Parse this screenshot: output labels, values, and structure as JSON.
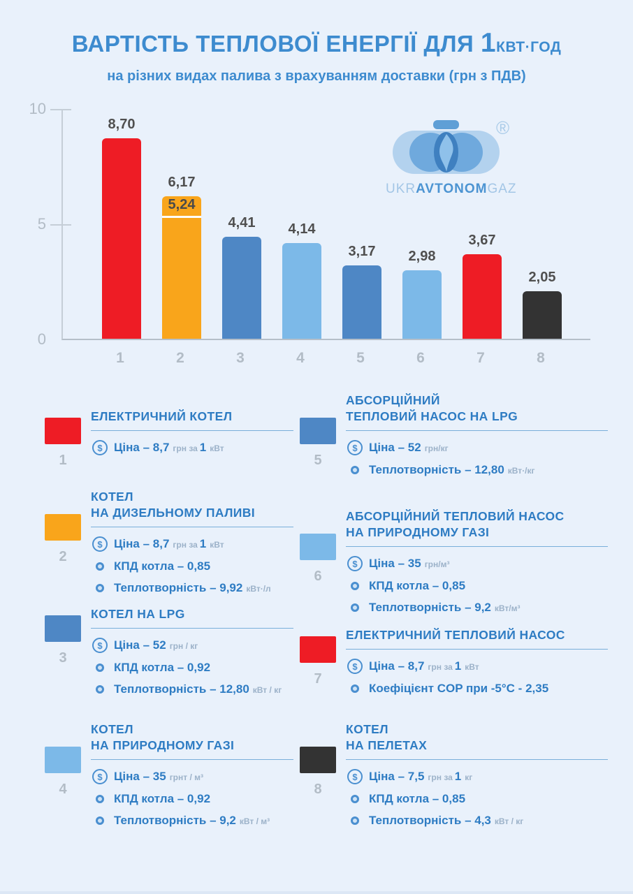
{
  "header": {
    "title_prefix": "ВАРТІСТЬ ТЕПЛОВОЇ ЕНЕРГІЇ ДЛЯ ",
    "title_num": "1",
    "title_unit": "КВТ·ГОД",
    "subtitle": "на різних видах палива з врахуванням доставки (грн з ПДВ)"
  },
  "logo": {
    "wordmark_pre": "UKR",
    "wordmark_bold": "AVTONOM",
    "wordmark_post": "GAZ",
    "registered": "®"
  },
  "chart_data": {
    "type": "bar",
    "title": "ВАРТІСТЬ ТЕПЛОВОЇ ЕНЕРГІЇ ДЛЯ 1 КВТ·ГОД на різних видах палива з врахуванням доставки (грн з ПДВ)",
    "categories": [
      "1",
      "2",
      "3",
      "4",
      "5",
      "6",
      "7",
      "8"
    ],
    "values": [
      8.7,
      6.17,
      4.41,
      4.14,
      3.17,
      2.98,
      3.67,
      2.05
    ],
    "value_labels": [
      "8,70",
      "6,17",
      "4,41",
      "4,14",
      "3,17",
      "2,98",
      "3,67",
      "2,05"
    ],
    "bar_colors": [
      "#ee1c25",
      "#f9a51b",
      "#4e87c5",
      "#7cb9e8",
      "#4e87c5",
      "#7cb9e8",
      "#ee1c25",
      "#333333"
    ],
    "inner_marker": {
      "bar_index": 1,
      "value": 5.24,
      "label": "5,24"
    },
    "ylim": [
      0,
      10
    ],
    "yticks": [
      0,
      5,
      10
    ],
    "xlabel": "",
    "ylabel": "",
    "grid": false,
    "legend_position": "bottom"
  },
  "colors": {
    "background": "#e9f1fb",
    "title_blue": "#3d8bcf",
    "accent_blue": "#2e7cc3",
    "unit_gray": "#9cb2c9",
    "axis_gray": "#b2bcc6",
    "red": "#ee1c25",
    "orange": "#f9a51b",
    "steel_blue": "#4e87c5",
    "light_blue": "#7cb9e8",
    "dark": "#333333",
    "value_label_gray": "#4f4f4f"
  },
  "legend": {
    "items": [
      {
        "num": "1",
        "color": "#ee1c25",
        "title_lines": [
          "ЕЛЕКТРИЧНИЙ КОТЕЛ"
        ],
        "details": [
          {
            "icon": "coin",
            "segs": [
              {
                "t": "Ціна – 8,7",
                "k": "b"
              },
              {
                "t": "грн за",
                "k": "u"
              },
              {
                "t": "1",
                "k": "b"
              },
              {
                "t": "кВт",
                "k": "u"
              }
            ]
          }
        ]
      },
      {
        "num": "2",
        "color": "#f9a51b",
        "title_lines": [
          "КОТЕЛ",
          "НА ДИЗЕЛЬНОМУ ПАЛИВІ"
        ],
        "details": [
          {
            "icon": "coin",
            "segs": [
              {
                "t": "Ціна – 8,7",
                "k": "b"
              },
              {
                "t": "грн за",
                "k": "u"
              },
              {
                "t": "1",
                "k": "b"
              },
              {
                "t": "кВт",
                "k": "u"
              }
            ]
          },
          {
            "icon": "dot",
            "segs": [
              {
                "t": "КПД котла – 0,85",
                "k": "b"
              }
            ]
          },
          {
            "icon": "dot",
            "segs": [
              {
                "t": "Теплотворність – 9,92",
                "k": "b"
              },
              {
                "t": "кВт·/л",
                "k": "u"
              }
            ]
          }
        ]
      },
      {
        "num": "3",
        "color": "#4e87c5",
        "title_lines": [
          "КОТЕЛ НА LPG"
        ],
        "details": [
          {
            "icon": "coin",
            "segs": [
              {
                "t": "Ціна – 52",
                "k": "b"
              },
              {
                "t": "грн / кг",
                "k": "u"
              }
            ]
          },
          {
            "icon": "dot",
            "segs": [
              {
                "t": "КПД котла – 0,92",
                "k": "b"
              }
            ]
          },
          {
            "icon": "dot",
            "segs": [
              {
                "t": "Теплотворність – 12,80",
                "k": "b"
              },
              {
                "t": "кВт / кг",
                "k": "u"
              }
            ]
          }
        ]
      },
      {
        "num": "4",
        "color": "#7cb9e8",
        "title_lines": [
          "КОТЕЛ",
          "НА ПРИРОДНОМУ ГАЗІ"
        ],
        "details": [
          {
            "icon": "coin",
            "segs": [
              {
                "t": "Ціна – 35",
                "k": "b"
              },
              {
                "t": "грнт / м³",
                "k": "u"
              }
            ]
          },
          {
            "icon": "dot",
            "segs": [
              {
                "t": "КПД котла – 0,92",
                "k": "b"
              }
            ]
          },
          {
            "icon": "dot",
            "segs": [
              {
                "t": "Теплотворність – 9,2",
                "k": "b"
              },
              {
                "t": "кВт / м³",
                "k": "u"
              }
            ]
          }
        ]
      },
      {
        "num": "5",
        "color": "#4e87c5",
        "title_lines": [
          "АБСОРЦІЙНИЙ",
          "ТЕПЛОВИЙ НАСОС НА LPG"
        ],
        "details": [
          {
            "icon": "coin",
            "segs": [
              {
                "t": "Ціна – 52",
                "k": "b"
              },
              {
                "t": "грн/кг",
                "k": "u"
              }
            ]
          },
          {
            "icon": "dot",
            "segs": [
              {
                "t": "Теплотворність – 12,80",
                "k": "b"
              },
              {
                "t": "кВт·/кг",
                "k": "u"
              }
            ]
          }
        ]
      },
      {
        "num": "6",
        "color": "#7cb9e8",
        "title_lines": [
          "АБСОРЦІЙНИЙ ТЕПЛОВИЙ НАСОС",
          "НА ПРИРОДНОМУ ГАЗІ"
        ],
        "details": [
          {
            "icon": "coin",
            "segs": [
              {
                "t": "Ціна – 35",
                "k": "b"
              },
              {
                "t": "грн/м³",
                "k": "u"
              }
            ]
          },
          {
            "icon": "dot",
            "segs": [
              {
                "t": "КПД котла – 0,85",
                "k": "b"
              }
            ]
          },
          {
            "icon": "dot",
            "segs": [
              {
                "t": "Теплотворність – 9,2",
                "k": "b"
              },
              {
                "t": "кВт/м³",
                "k": "u"
              }
            ]
          }
        ]
      },
      {
        "num": "7",
        "color": "#ee1c25",
        "title_lines": [
          "ЕЛЕКТРИЧНИЙ ТЕПЛОВИЙ НАСОС"
        ],
        "details": [
          {
            "icon": "coin",
            "segs": [
              {
                "t": "Ціна – 8,7",
                "k": "b"
              },
              {
                "t": "грн за",
                "k": "u"
              },
              {
                "t": "1",
                "k": "b"
              },
              {
                "t": "кВт",
                "k": "u"
              }
            ]
          },
          {
            "icon": "dot",
            "segs": [
              {
                "t": "Коефіцієнт COP при -5°С - 2,35",
                "k": "b"
              }
            ]
          }
        ]
      },
      {
        "num": "8",
        "color": "#333333",
        "title_lines": [
          "КОТЕЛ",
          "НА ПЕЛЕТАХ"
        ],
        "details": [
          {
            "icon": "coin",
            "segs": [
              {
                "t": "Ціна – 7,5",
                "k": "b"
              },
              {
                "t": "грн за",
                "k": "u"
              },
              {
                "t": "1",
                "k": "b"
              },
              {
                "t": "кг",
                "k": "u"
              }
            ]
          },
          {
            "icon": "dot",
            "segs": [
              {
                "t": "КПД котла – 0,85",
                "k": "b"
              }
            ]
          },
          {
            "icon": "dot",
            "segs": [
              {
                "t": "Теплотворність – 4,3",
                "k": "b"
              },
              {
                "t": "кВт / кг",
                "k": "u"
              }
            ]
          }
        ]
      }
    ]
  }
}
